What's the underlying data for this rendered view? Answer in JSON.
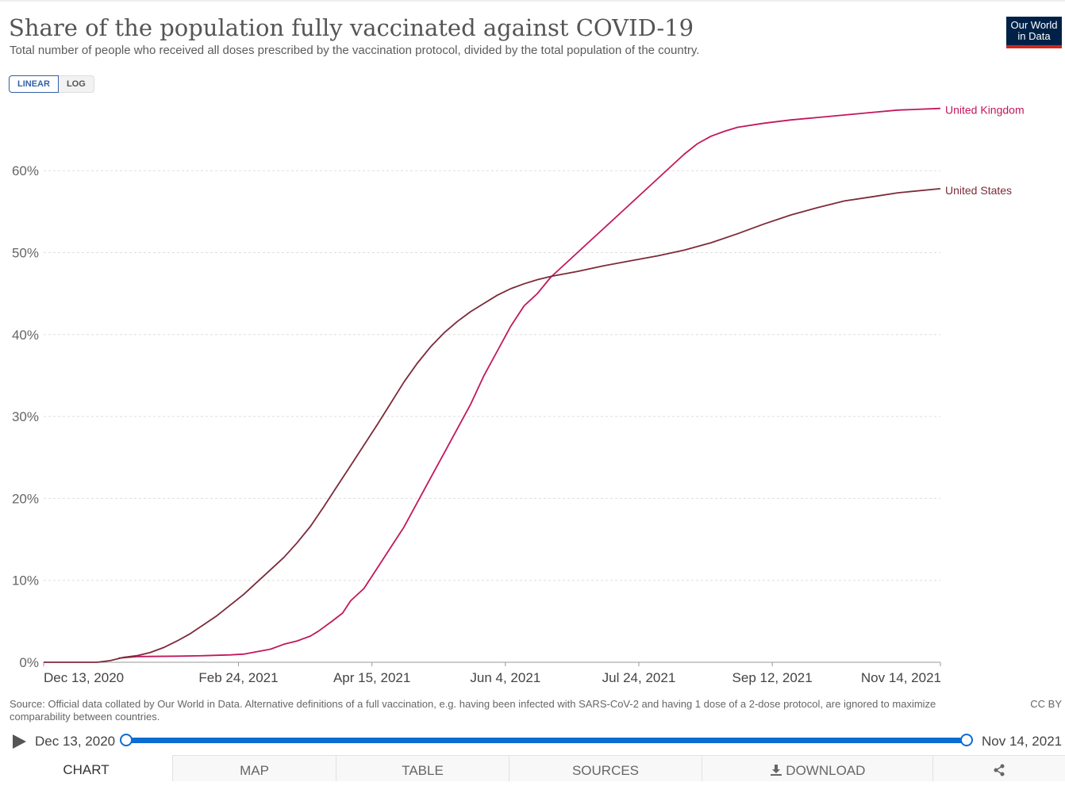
{
  "header": {
    "title": "Share of the population fully vaccinated against COVID-19",
    "subtitle": "Total number of people who received all doses prescribed by the vaccination protocol, divided by the total population of the country.",
    "logo_line1": "Our World",
    "logo_line2": "in Data"
  },
  "scale_toggle": {
    "linear_label": "LINEAR",
    "log_label": "LOG",
    "selected": "LINEAR"
  },
  "chart_data": {
    "type": "line",
    "title": "Share of the population fully vaccinated against COVID-19",
    "xlabel": "",
    "ylabel": "",
    "x_start": "2020-12-13",
    "x_end": "2021-11-14",
    "ylim": [
      0,
      67.5
    ],
    "y_ticks": [
      0,
      10,
      20,
      30,
      40,
      50,
      60
    ],
    "y_tick_labels": [
      "0%",
      "10%",
      "20%",
      "30%",
      "40%",
      "50%",
      "60%"
    ],
    "x_ticks": [
      {
        "day": 0,
        "label": "Dec 13, 2020"
      },
      {
        "day": 73,
        "label": "Feb 24, 2021"
      },
      {
        "day": 123,
        "label": "Apr 15, 2021"
      },
      {
        "day": 173,
        "label": "Jun 4, 2021"
      },
      {
        "day": 223,
        "label": "Jul 24, 2021"
      },
      {
        "day": 273,
        "label": "Sep 12, 2021"
      },
      {
        "day": 336,
        "label": "Nov 14, 2021"
      }
    ],
    "grid": true,
    "series": [
      {
        "name": "United Kingdom",
        "color": "#c2185b",
        "points": [
          [
            28,
            0.5
          ],
          [
            35,
            0.7
          ],
          [
            50,
            0.75
          ],
          [
            60,
            0.8
          ],
          [
            70,
            0.9
          ],
          [
            75,
            1.0
          ],
          [
            80,
            1.3
          ],
          [
            85,
            1.6
          ],
          [
            90,
            2.2
          ],
          [
            95,
            2.6
          ],
          [
            100,
            3.2
          ],
          [
            103,
            3.8
          ],
          [
            108,
            5.0
          ],
          [
            112,
            6.0
          ],
          [
            115,
            7.5
          ],
          [
            120,
            9.0
          ],
          [
            125,
            11.5
          ],
          [
            130,
            14.0
          ],
          [
            135,
            16.5
          ],
          [
            140,
            19.5
          ],
          [
            145,
            22.5
          ],
          [
            150,
            25.5
          ],
          [
            155,
            28.5
          ],
          [
            160,
            31.5
          ],
          [
            165,
            35.0
          ],
          [
            170,
            38.0
          ],
          [
            175,
            41.0
          ],
          [
            180,
            43.5
          ],
          [
            185,
            45.0
          ],
          [
            190,
            47.0
          ],
          [
            195,
            48.5
          ],
          [
            200,
            50.0
          ],
          [
            205,
            51.5
          ],
          [
            210,
            53.0
          ],
          [
            215,
            54.5
          ],
          [
            220,
            56.0
          ],
          [
            225,
            57.5
          ],
          [
            230,
            59.0
          ],
          [
            235,
            60.5
          ],
          [
            240,
            62.0
          ],
          [
            245,
            63.3
          ],
          [
            250,
            64.2
          ],
          [
            255,
            64.8
          ],
          [
            260,
            65.3
          ],
          [
            270,
            65.8
          ],
          [
            280,
            66.2
          ],
          [
            290,
            66.5
          ],
          [
            300,
            66.8
          ],
          [
            310,
            67.1
          ],
          [
            320,
            67.4
          ],
          [
            336,
            67.6
          ]
        ],
        "end_label": "United Kingdom"
      },
      {
        "name": "United States",
        "color": "#7d2a3a",
        "points": [
          [
            0,
            0.0
          ],
          [
            20,
            0.0
          ],
          [
            25,
            0.2
          ],
          [
            30,
            0.6
          ],
          [
            35,
            0.8
          ],
          [
            40,
            1.2
          ],
          [
            45,
            1.8
          ],
          [
            50,
            2.6
          ],
          [
            55,
            3.5
          ],
          [
            60,
            4.6
          ],
          [
            65,
            5.7
          ],
          [
            70,
            7.0
          ],
          [
            75,
            8.3
          ],
          [
            80,
            9.8
          ],
          [
            85,
            11.3
          ],
          [
            90,
            12.8
          ],
          [
            95,
            14.6
          ],
          [
            100,
            16.6
          ],
          [
            105,
            19.0
          ],
          [
            110,
            21.5
          ],
          [
            115,
            24.0
          ],
          [
            120,
            26.5
          ],
          [
            125,
            29.0
          ],
          [
            130,
            31.6
          ],
          [
            135,
            34.2
          ],
          [
            140,
            36.5
          ],
          [
            145,
            38.5
          ],
          [
            150,
            40.2
          ],
          [
            155,
            41.6
          ],
          [
            160,
            42.8
          ],
          [
            165,
            43.8
          ],
          [
            170,
            44.8
          ],
          [
            175,
            45.6
          ],
          [
            180,
            46.2
          ],
          [
            185,
            46.7
          ],
          [
            190,
            47.1
          ],
          [
            200,
            47.7
          ],
          [
            210,
            48.4
          ],
          [
            220,
            49.0
          ],
          [
            230,
            49.6
          ],
          [
            240,
            50.3
          ],
          [
            250,
            51.2
          ],
          [
            260,
            52.3
          ],
          [
            270,
            53.5
          ],
          [
            280,
            54.6
          ],
          [
            290,
            55.5
          ],
          [
            300,
            56.3
          ],
          [
            310,
            56.8
          ],
          [
            320,
            57.3
          ],
          [
            336,
            57.8
          ]
        ],
        "end_label": "United States"
      }
    ]
  },
  "footer": {
    "source": "Source: Official data collated by Our World in Data. Alternative definitions of a full vaccination, e.g. having been infected with SARS-CoV-2 and having 1 dose of a 2-dose protocol, are ignored to maximize comparability between countries.",
    "license": "CC BY"
  },
  "timeline": {
    "start_label": "Dec 13, 2020",
    "end_label": "Nov 14, 2021"
  },
  "tabs": {
    "chart": "CHART",
    "map": "MAP",
    "table": "TABLE",
    "sources": "SOURCES",
    "download": "DOWNLOAD"
  }
}
